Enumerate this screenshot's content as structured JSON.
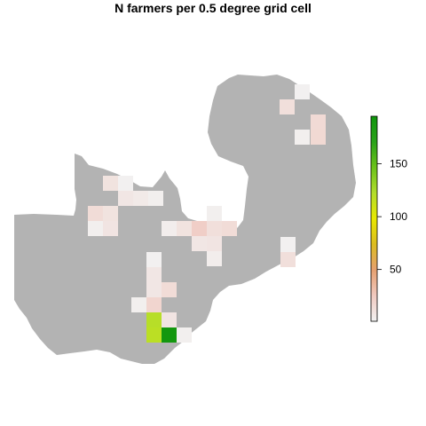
{
  "title": "N farmers per 0.5 degree grid cell",
  "legend": {
    "ticks": [
      {
        "value": 50,
        "label": "50"
      },
      {
        "value": 100,
        "label": "100"
      },
      {
        "value": 150,
        "label": "150"
      }
    ],
    "range": [
      1,
      195
    ],
    "colors": [
      "#f2f2f2",
      "#f0c9c0",
      "#e6a070",
      "#dcbc20",
      "#e8e800",
      "#b2dd2c",
      "#6cc21a",
      "#2aa21a",
      "#10960c"
    ]
  },
  "map": {
    "fill": "#b3b3b3"
  },
  "grid_cells": [
    {
      "col": 0,
      "row": 0,
      "farmers": 2
    },
    {
      "col": -1,
      "row": 1,
      "farmers": 12
    },
    {
      "col": 1,
      "row": 2,
      "farmers": 15
    },
    {
      "col": 0,
      "row": 3,
      "farmers": 3
    },
    {
      "col": 1,
      "row": 3,
      "farmers": 16
    },
    {
      "col": 0,
      "row": 0,
      "farmers": 10
    },
    {
      "col": 1,
      "row": 0,
      "farmers": 2
    },
    {
      "col": 1,
      "row": 1,
      "farmers": 8
    },
    {
      "col": 2,
      "row": 1,
      "farmers": 6
    },
    {
      "col": 3,
      "row": 1,
      "farmers": 3
    },
    {
      "col": -1,
      "row": 2,
      "farmers": 14
    },
    {
      "col": 0,
      "row": 2,
      "farmers": 10
    },
    {
      "col": -1,
      "row": 3,
      "farmers": 3
    },
    {
      "col": 0,
      "row": 3,
      "farmers": 9
    },
    {
      "col": 0,
      "row": 0,
      "farmers": 3
    },
    {
      "col": -3,
      "row": 1,
      "farmers": 4
    },
    {
      "col": -2,
      "row": 1,
      "farmers": 10
    },
    {
      "col": -1,
      "row": 1,
      "farmers": 22
    },
    {
      "col": 0,
      "row": 1,
      "farmers": 12
    },
    {
      "col": 1,
      "row": 1,
      "farmers": 14
    },
    {
      "col": -1,
      "row": 2,
      "farmers": 8
    },
    {
      "col": 0,
      "row": 2,
      "farmers": 9
    },
    {
      "col": 0,
      "row": 3,
      "farmers": 4
    },
    {
      "col": 0,
      "row": 0,
      "farmers": 2
    },
    {
      "col": 0,
      "row": 1,
      "farmers": 12
    },
    {
      "col": 0,
      "row": 0,
      "farmers": 2
    },
    {
      "col": 0,
      "row": 1,
      "farmers": 8
    },
    {
      "col": 0,
      "row": 2,
      "farmers": 8
    },
    {
      "col": 1,
      "row": 2,
      "farmers": 14
    },
    {
      "col": -1,
      "row": 3,
      "farmers": 3
    },
    {
      "col": 0,
      "row": 3,
      "farmers": 18
    },
    {
      "col": 0,
      "row": 4,
      "farmers": 120
    },
    {
      "col": 1,
      "row": 4,
      "farmers": 9
    },
    {
      "col": 0,
      "row": 5,
      "farmers": 118
    },
    {
      "col": 1,
      "row": 5,
      "farmers": 192
    },
    {
      "col": 2,
      "row": 5,
      "farmers": 3
    }
  ]
}
